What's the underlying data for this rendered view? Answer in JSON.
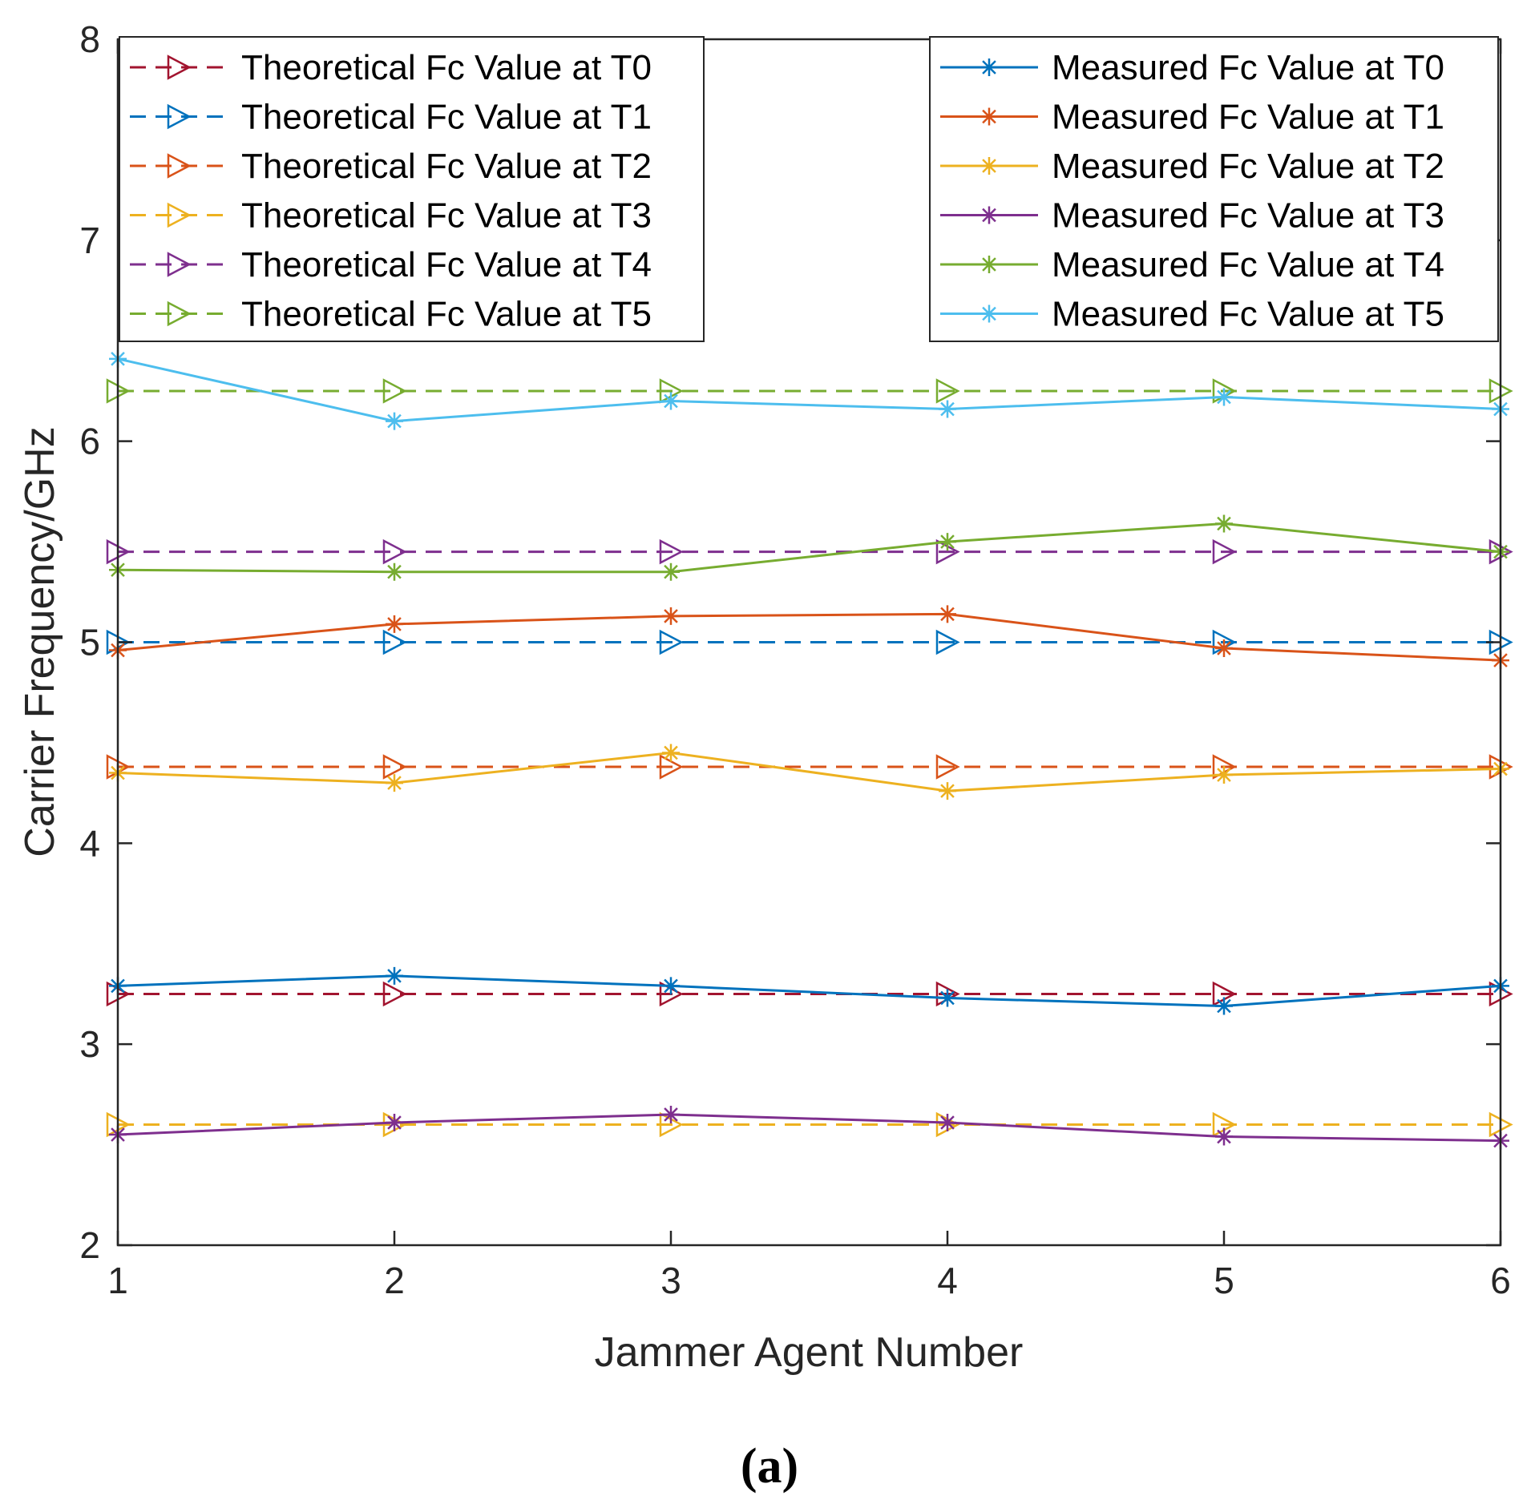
{
  "chart_data": {
    "type": "line",
    "xlabel": "Jammer Agent Number",
    "ylabel": "Carrier  Frequency/GHz",
    "xlim": [
      1,
      6
    ],
    "ylim": [
      2,
      8
    ],
    "xticks": [
      "1",
      "2",
      "3",
      "4",
      "5",
      "6"
    ],
    "yticks": [
      "2",
      "3",
      "4",
      "5",
      "6",
      "7",
      "8"
    ],
    "caption": "(a)",
    "x": [
      1,
      2,
      3,
      4,
      5,
      6
    ],
    "series": [
      {
        "name": "Theoretical Fc Value at T0",
        "color": "#A2142F",
        "style": "dashed",
        "marker": "triangle-right",
        "values": [
          3.25,
          3.25,
          3.25,
          3.25,
          3.25,
          3.25
        ]
      },
      {
        "name": "Theoretical Fc Value at T1",
        "color": "#0072BD",
        "style": "dashed",
        "marker": "triangle-right",
        "values": [
          5.0,
          5.0,
          5.0,
          5.0,
          5.0,
          5.0
        ]
      },
      {
        "name": "Theoretical Fc Value at T2",
        "color": "#D95319",
        "style": "dashed",
        "marker": "triangle-right",
        "values": [
          4.38,
          4.38,
          4.38,
          4.38,
          4.38,
          4.38
        ]
      },
      {
        "name": "Theoretical Fc Value at T3",
        "color": "#EDB120",
        "style": "dashed",
        "marker": "triangle-right",
        "values": [
          2.6,
          2.6,
          2.6,
          2.6,
          2.6,
          2.6
        ]
      },
      {
        "name": "Theoretical Fc Value at T4",
        "color": "#7E2F8E",
        "style": "dashed",
        "marker": "triangle-right",
        "values": [
          5.45,
          5.45,
          5.45,
          5.45,
          5.45,
          5.45
        ]
      },
      {
        "name": "Theoretical Fc Value at T5",
        "color": "#77AC30",
        "style": "dashed",
        "marker": "triangle-right",
        "values": [
          6.25,
          6.25,
          6.25,
          6.25,
          6.25,
          6.25
        ]
      },
      {
        "name": "Measured Fc Value at T0",
        "color": "#0072BD",
        "style": "solid",
        "marker": "asterisk",
        "values": [
          3.29,
          3.34,
          3.29,
          3.23,
          3.19,
          3.29
        ]
      },
      {
        "name": "Measured Fc Value at T1",
        "color": "#D95319",
        "style": "solid",
        "marker": "asterisk",
        "values": [
          4.96,
          5.09,
          5.13,
          5.14,
          4.97,
          4.91
        ]
      },
      {
        "name": "Measured Fc Value at T2",
        "color": "#EDB120",
        "style": "solid",
        "marker": "asterisk",
        "values": [
          4.35,
          4.3,
          4.45,
          4.26,
          4.34,
          4.37
        ]
      },
      {
        "name": "Measured Fc Value at T3",
        "color": "#7E2F8E",
        "style": "solid",
        "marker": "asterisk",
        "values": [
          2.55,
          2.61,
          2.65,
          2.61,
          2.54,
          2.52
        ]
      },
      {
        "name": "Measured Fc Value at T4",
        "color": "#77AC30",
        "style": "solid",
        "marker": "asterisk",
        "values": [
          5.36,
          5.35,
          5.35,
          5.5,
          5.59,
          5.45
        ]
      },
      {
        "name": "Measured Fc Value at T5",
        "color": "#4DBEEE",
        "style": "solid",
        "marker": "asterisk",
        "values": [
          6.41,
          6.1,
          6.2,
          6.16,
          6.22,
          6.16
        ]
      }
    ],
    "legends": [
      {
        "position": "top-left",
        "entries": [
          0,
          1,
          2,
          3,
          4,
          5
        ]
      },
      {
        "position": "top-right",
        "entries": [
          6,
          7,
          8,
          9,
          10,
          11
        ]
      }
    ]
  }
}
